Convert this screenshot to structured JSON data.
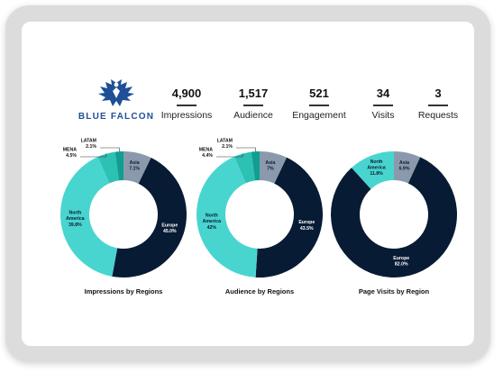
{
  "brand": {
    "name": "BLUE FALCON",
    "logo_icon": "falcon-logo-icon"
  },
  "stats": [
    {
      "value": "4,900",
      "label": "Impressions"
    },
    {
      "value": "1,517",
      "label": "Audience"
    },
    {
      "value": "521",
      "label": "Engagement"
    },
    {
      "value": "34",
      "label": "Visits"
    },
    {
      "value": "3",
      "label": "Requests"
    }
  ],
  "colors": {
    "europe": "#081b34",
    "north_america": "#48d5cf",
    "asia": "#8a9aac",
    "mena": "#2cc1b3",
    "latam": "#119e92"
  },
  "chart_data": [
    {
      "type": "pie",
      "title": "Impressions by Regions",
      "slices": [
        {
          "name": "Asia",
          "value": 7.1,
          "label": "7.1%",
          "color": "#8a9aac"
        },
        {
          "name": "Europe",
          "value": 45.0,
          "label": "45.0%",
          "color": "#081b34"
        },
        {
          "name": "North America",
          "value": 39.8,
          "label": "39.8%",
          "color": "#48d5cf"
        },
        {
          "name": "MENA",
          "value": 4.5,
          "label": "4.5%",
          "color": "#2cc1b3"
        },
        {
          "name": "LATAM",
          "value": 2.1,
          "label": "2.1%",
          "color": "#119e92"
        }
      ]
    },
    {
      "type": "pie",
      "title": "Audience by Regions",
      "slices": [
        {
          "name": "Asia",
          "value": 7,
          "label": "7%",
          "color": "#8a9aac"
        },
        {
          "name": "Europe",
          "value": 43.5,
          "label": "43.5%",
          "color": "#081b34"
        },
        {
          "name": "North America",
          "value": 42,
          "label": "42%",
          "color": "#48d5cf"
        },
        {
          "name": "MENA",
          "value": 4.4,
          "label": "4.4%",
          "color": "#2cc1b3"
        },
        {
          "name": "LATAM",
          "value": 2.1,
          "label": "2.1%",
          "color": "#119e92"
        }
      ]
    },
    {
      "type": "pie",
      "title": "Page Visits by Region",
      "slices": [
        {
          "name": "Asia",
          "value": 6.9,
          "label": "6.9%",
          "color": "#8a9aac"
        },
        {
          "name": "Europe",
          "value": 82.0,
          "label": "82.0%",
          "color": "#081b34"
        },
        {
          "name": "North America",
          "value": 11.8,
          "label": "11.8%",
          "color": "#48d5cf"
        }
      ]
    }
  ]
}
